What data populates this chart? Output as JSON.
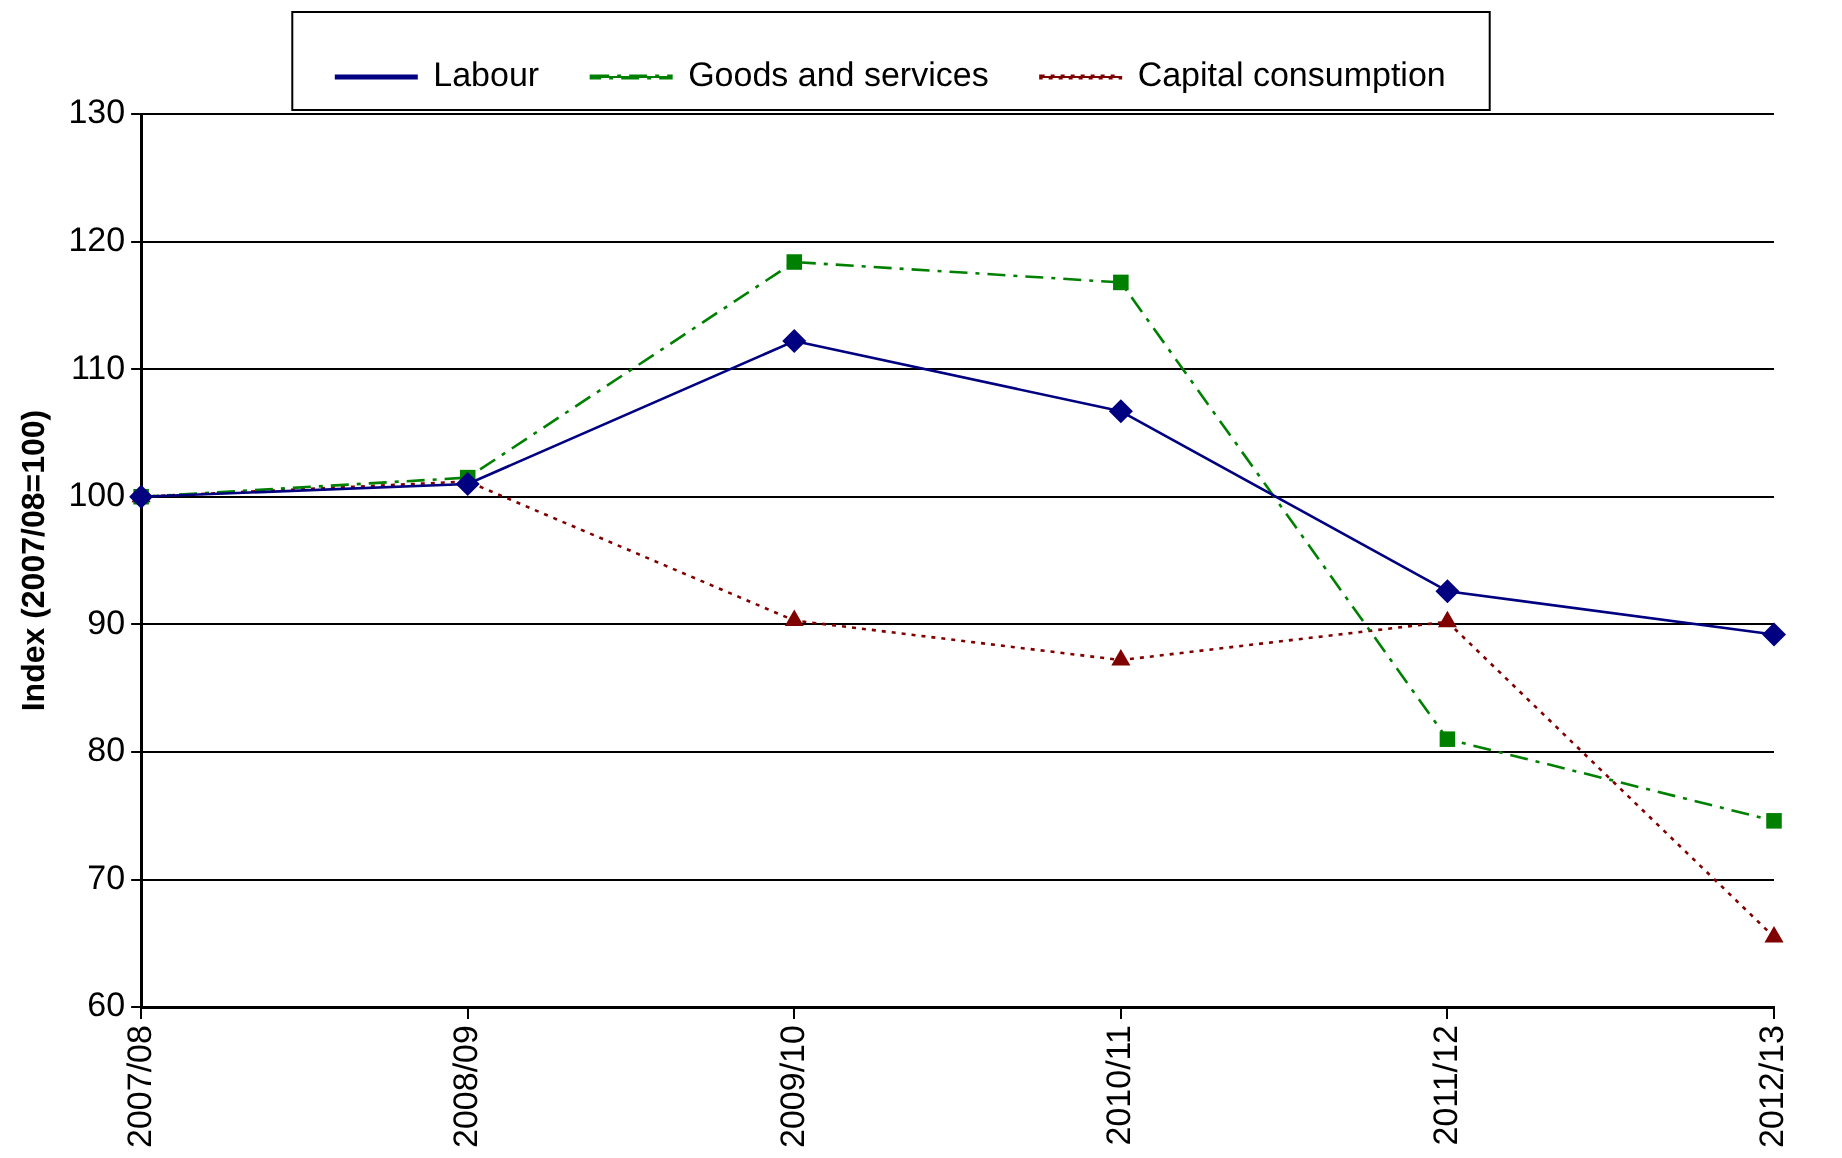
{
  "chart_data": {
    "type": "line",
    "ylabel": "Index (2007/08=100)",
    "categories": [
      "2007/08",
      "2008/09",
      "2009/10",
      "2010/11",
      "2011/12",
      "2012/13"
    ],
    "series": [
      {
        "name": "Labour",
        "color": "#000080",
        "marker": "diamond",
        "line_style": "solid",
        "values": [
          100,
          101,
          112.2,
          106.7,
          92.6,
          89.2
        ]
      },
      {
        "name": "Goods and services",
        "color": "#008000",
        "marker": "square",
        "line_style": "dashed",
        "values": [
          100,
          101.5,
          118.4,
          116.8,
          81,
          74.6
        ]
      },
      {
        "name": "Capital consumption",
        "color": "#800000",
        "marker": "triangle",
        "line_style": "dotted",
        "values": [
          100,
          101.2,
          90.3,
          87.2,
          90.2,
          65.5
        ]
      }
    ],
    "ylim": [
      60,
      130
    ],
    "yticks": [
      60,
      70,
      80,
      90,
      100,
      110,
      120,
      130
    ],
    "grid": "y",
    "legend": "top"
  }
}
